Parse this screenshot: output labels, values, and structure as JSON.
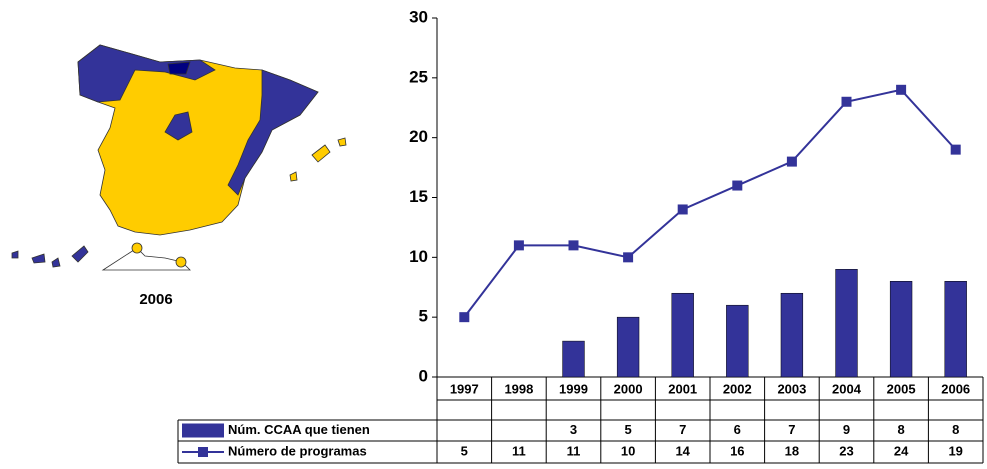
{
  "map": {
    "caption": "2006"
  },
  "chart_data": {
    "type": "bar_line",
    "categories": [
      "1997",
      "1998",
      "1999",
      "2000",
      "2001",
      "2002",
      "2003",
      "2004",
      "2005",
      "2006"
    ],
    "series": [
      {
        "name": "Núm. CCAA que tienen",
        "type": "bar",
        "color": "#333399",
        "values": [
          null,
          null,
          3,
          5,
          7,
          6,
          7,
          9,
          8,
          8
        ]
      },
      {
        "name": "Número de programas",
        "type": "line",
        "color": "#333399",
        "values": [
          5,
          11,
          11,
          10,
          14,
          16,
          18,
          23,
          24,
          19
        ]
      }
    ],
    "ylim": [
      0,
      30
    ],
    "yticks": [
      0,
      5,
      10,
      15,
      20,
      25,
      30
    ],
    "grid": false,
    "data_table": true
  }
}
